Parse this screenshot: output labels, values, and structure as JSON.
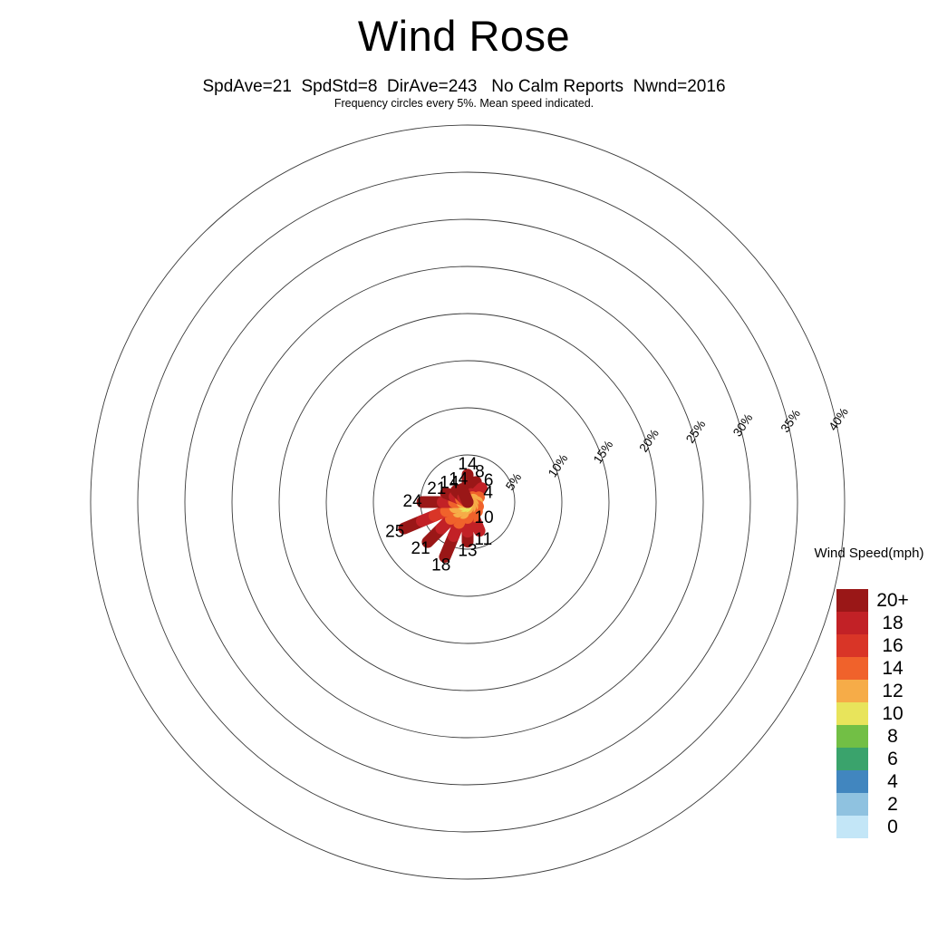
{
  "header": {
    "title": "Wind Rose",
    "subtitle": "SpdAve=21  SpdStd=8  DirAve=243   No Calm Reports  Nwnd=2016",
    "note": "Frequency circles every 5%. Mean speed indicated."
  },
  "chart_data": {
    "type": "wind_rose",
    "title": "Wind Rose",
    "stats": {
      "SpdAve": 21,
      "SpdStd": 8,
      "DirAve": 243,
      "calm": "No Calm Reports",
      "Nwnd": 2016
    },
    "frequency_ring_step_pct": 5,
    "max_ring_pct": 40,
    "ring_labels": [
      "5%",
      "10%",
      "15%",
      "20%",
      "25%",
      "30%",
      "35%",
      "40%"
    ],
    "petals": [
      {
        "direction": "N",
        "bearing_deg": 0,
        "frequency_pct": 2.9,
        "mean_speed_mph": "14",
        "segments": [
          [
            0,
            0.25,
            "#d93527"
          ],
          [
            0.25,
            1,
            "#9a1717"
          ]
        ]
      },
      {
        "direction": "NNE",
        "bearing_deg": 22.5,
        "frequency_pct": 2.3,
        "mean_speed_mph": "8",
        "segments": [
          [
            0,
            0.4,
            "#c22126"
          ],
          [
            0.4,
            1,
            "#9a1717"
          ]
        ]
      },
      {
        "direction": "NE",
        "bearing_deg": 45,
        "frequency_pct": 2.1,
        "mean_speed_mph": "6",
        "segments": [
          [
            0,
            0.35,
            "#f0622b"
          ],
          [
            0.35,
            1,
            "#c22126"
          ]
        ]
      },
      {
        "direction": "ENE",
        "bearing_deg": 67.5,
        "frequency_pct": 1.3,
        "mean_speed_mph": "4",
        "segments": [
          [
            0,
            0.5,
            "#f6ac48"
          ],
          [
            0.5,
            1,
            "#f0622b"
          ]
        ]
      },
      {
        "direction": "E",
        "bearing_deg": 90,
        "frequency_pct": 1.0,
        "mean_speed_mph": "",
        "segments": [
          [
            0,
            1,
            "#f6ac48"
          ]
        ]
      },
      {
        "direction": "ESE",
        "bearing_deg": 112.5,
        "frequency_pct": 1.2,
        "mean_speed_mph": "",
        "segments": [
          [
            0,
            0.5,
            "#f6ac48"
          ],
          [
            0.5,
            1,
            "#f0622b"
          ]
        ]
      },
      {
        "direction": "SE",
        "bearing_deg": 135,
        "frequency_pct": 1.4,
        "mean_speed_mph": "10",
        "segments": [
          [
            0,
            0.5,
            "#f6ac48"
          ],
          [
            0.5,
            1,
            "#f0622b"
          ]
        ]
      },
      {
        "direction": "SSE",
        "bearing_deg": 157.5,
        "frequency_pct": 3.3,
        "mean_speed_mph": "11",
        "segments": [
          [
            0,
            0.2,
            "#f6ac48"
          ],
          [
            0.2,
            0.5,
            "#f0622b"
          ],
          [
            0.5,
            1,
            "#c22126"
          ]
        ]
      },
      {
        "direction": "S",
        "bearing_deg": 180,
        "frequency_pct": 4.2,
        "mean_speed_mph": "13",
        "segments": [
          [
            0,
            0.15,
            "#f6ac48"
          ],
          [
            0.15,
            0.4,
            "#f0622b"
          ],
          [
            0.4,
            0.75,
            "#c22126"
          ],
          [
            0.75,
            1,
            "#9a1717"
          ]
        ]
      },
      {
        "direction": "SSW",
        "bearing_deg": 202.5,
        "frequency_pct": 6.3,
        "mean_speed_mph": "18",
        "segments": [
          [
            0,
            0.08,
            "#e8e45b"
          ],
          [
            0.08,
            0.2,
            "#f6ac48"
          ],
          [
            0.2,
            0.38,
            "#f0622b"
          ],
          [
            0.38,
            0.62,
            "#c22126"
          ],
          [
            0.62,
            1,
            "#9a1717"
          ]
        ]
      },
      {
        "direction": "SW",
        "bearing_deg": 225,
        "frequency_pct": 6.0,
        "mean_speed_mph": "21",
        "segments": [
          [
            0,
            0.1,
            "#e8e45b"
          ],
          [
            0.1,
            0.24,
            "#f6ac48"
          ],
          [
            0.24,
            0.42,
            "#f0622b"
          ],
          [
            0.42,
            0.66,
            "#c22126"
          ],
          [
            0.66,
            1,
            "#9a1717"
          ]
        ]
      },
      {
        "direction": "WSW",
        "bearing_deg": 247.5,
        "frequency_pct": 7.3,
        "mean_speed_mph": "25",
        "segments": [
          [
            0,
            0.08,
            "#e8e45b"
          ],
          [
            0.08,
            0.2,
            "#f6ac48"
          ],
          [
            0.2,
            0.34,
            "#f0622b"
          ],
          [
            0.34,
            0.52,
            "#d93527"
          ],
          [
            0.52,
            0.72,
            "#c22126"
          ],
          [
            0.72,
            1,
            "#9a1717"
          ]
        ]
      },
      {
        "direction": "W",
        "bearing_deg": 270,
        "frequency_pct": 4.8,
        "mean_speed_mph": "24",
        "segments": [
          [
            0,
            0.12,
            "#f6ac48"
          ],
          [
            0.12,
            0.3,
            "#f0622b"
          ],
          [
            0.3,
            0.55,
            "#c22126"
          ],
          [
            0.55,
            1,
            "#9a1717"
          ]
        ]
      },
      {
        "direction": "WNW",
        "bearing_deg": 292.5,
        "frequency_pct": 2.5,
        "mean_speed_mph": "21",
        "segments": [
          [
            0,
            0.3,
            "#f0622b"
          ],
          [
            0.3,
            0.6,
            "#c22126"
          ],
          [
            0.6,
            1,
            "#9a1717"
          ]
        ]
      },
      {
        "direction": "NW",
        "bearing_deg": 315,
        "frequency_pct": 1.7,
        "mean_speed_mph": "14",
        "segments": [
          [
            0,
            0.4,
            "#c22126"
          ],
          [
            0.4,
            1,
            "#9a1717"
          ]
        ]
      },
      {
        "direction": "NNW",
        "bearing_deg": 337.5,
        "frequency_pct": 1.5,
        "mean_speed_mph": "14",
        "segments": [
          [
            0,
            1,
            "#9a1717"
          ]
        ]
      }
    ],
    "legend": {
      "title": "Wind Speed(mph)",
      "bins": [
        {
          "label": "20+",
          "color": "#9a1717"
        },
        {
          "label": "18",
          "color": "#c22126"
        },
        {
          "label": "16",
          "color": "#d93527"
        },
        {
          "label": "14",
          "color": "#f0622b"
        },
        {
          "label": "12",
          "color": "#f6ac48"
        },
        {
          "label": "10",
          "color": "#e8e45b"
        },
        {
          "label": "8",
          "color": "#72bf45"
        },
        {
          "label": "6",
          "color": "#3aa36c"
        },
        {
          "label": "4",
          "color": "#4186bf"
        },
        {
          "label": "2",
          "color": "#8fc2e0"
        },
        {
          "label": "0",
          "color": "#c3e6f7"
        }
      ]
    }
  }
}
